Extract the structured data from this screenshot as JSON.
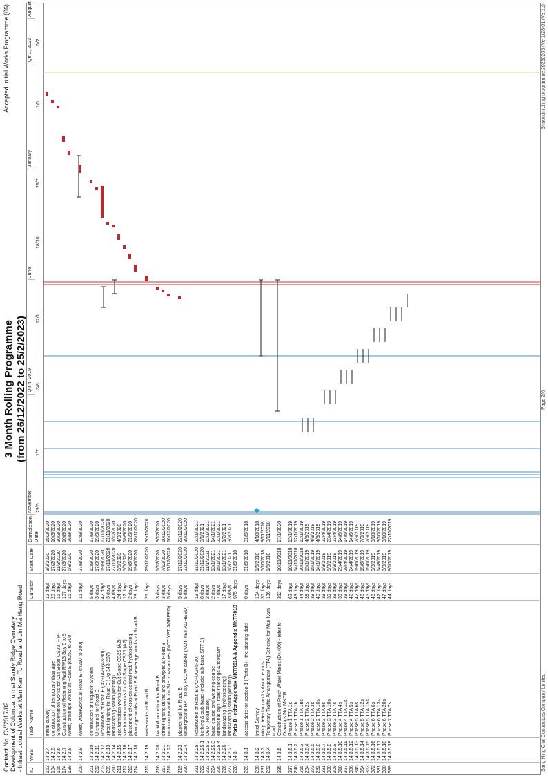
{
  "header": {
    "contract_line": "Contract No. CV/2017/02",
    "development_line": "Development of Columbarium at Sandy Ridge Cemetery",
    "works_line": "- Infrastructural Works at Man Kam To Road and Lin Ma Hang Road",
    "title_line1": "3 Month Rolling Programme",
    "title_line2": "(from 26/12/2022 to 25/2/2023)",
    "top_right": "Accepted Initial Works Programme (06)"
  },
  "columns": {
    "id": "ID",
    "wbs": "WBS",
    "task_name": "Task Name",
    "duration": "Duration",
    "start": "Start Date",
    "completion": "Completion Date"
  },
  "timescale": {
    "top": [
      "November",
      "Qtr 4, 2019",
      "June",
      "January",
      "Qtr 1, 2023",
      "August"
    ],
    "bottom": [
      "29/5",
      "1/7",
      "3/8",
      "12/1",
      "18/10",
      "25/7",
      "1/5",
      "5/2"
    ]
  },
  "rows": [
    {
      "id": "163",
      "wbs": "14.2.4",
      "name": "initial survey",
      "dur": "12 days",
      "start": "3/2/2020",
      "end": "15/2/2020"
    },
    {
      "id": "164",
      "wbs": "14.2.5",
      "name": "construction of temporary drainage",
      "dur": "20 days",
      "start": "17/2/2020",
      "end": "10/3/2020"
    },
    {
      "id": "165",
      "wbs": "14.2.6",
      "name": "Slope formation works for Cut Slope CS22 (+ P-",
      "dur": "15 days",
      "start": "11/3/2020",
      "end": "30/3/2020"
    },
    {
      "id": "174",
      "wbs": "14.2.7",
      "name": "Construction of Retaining Wall RW13 Bay 6 to 9",
      "dur": "107 days",
      "start": "27/3/2020",
      "end": "10/8/2020"
    },
    {
      "id": "199",
      "wbs": "14.2.8",
      "name": "(west) drainage works at Road E (ch250 to 300)",
      "dur": "16 days",
      "start": "6/8/2020",
      "end": "26/8/2020"
    },
    {
      "id": "200",
      "wbs": "14.2.9",
      "name": "(west) waterworks at Road E (ch250 to 300)",
      "dur": "15 days",
      "start": "27/8/2020",
      "end": "12/9/2020"
    },
    {
      "id": "201",
      "wbs": "14.2.10",
      "name": "construction of Irrigation System",
      "dur": "5 days",
      "start": "12/9/2020",
      "end": "17/9/2020"
    },
    {
      "id": "202",
      "wbs": "14.2.11",
      "name": "U-channel for Road E",
      "dur": "3 days",
      "start": "17/9/2020",
      "end": "19/9/2020"
    },
    {
      "id": "203",
      "wbs": "14.2.12",
      "name": "Roadworks of Road E (A2+(A2+(A3-90))",
      "dur": "42 days",
      "start": "19/9/2020",
      "end": "17/11/2020"
    },
    {
      "id": "209",
      "wbs": "14.2.13",
      "name": "street lighting for Road E (Ltg 143-207)",
      "dur": "3 days",
      "start": "17/11/2020",
      "end": "21/11/2020"
    },
    {
      "id": "210",
      "wbs": "14.2.14",
      "name": "landscaping (shrub planting)",
      "dur": "4 days",
      "start": "27/11/2020",
      "end": "1/12/2020"
    },
    {
      "id": "211",
      "wbs": "14.2.15",
      "name": "site formation works for Cut Slope CS25 (A2)",
      "dur": "24 days",
      "start": "8/6/2020",
      "end": "4/9/2020"
    },
    {
      "id": "212",
      "wbs": "14.2.16",
      "name": "site formation works for Cut Slope CS26 (A2)",
      "dur": "12 days",
      "start": "5/6/2020",
      "end": "18/9/2020"
    },
    {
      "id": "213",
      "wbs": "14.2.17",
      "name": "placement of erosion control mat/ hydroseeding",
      "dur": "2 days",
      "start": "19/6/2020",
      "end": "21/9/2020"
    },
    {
      "id": "214",
      "wbs": "14.2.18",
      "name": "drainage works at Road B & sewerage works at Road B",
      "dur": "28 days",
      "start": "19/6/2020",
      "end": "28/10/2020"
    },
    {
      "id": "215",
      "wbs": "14.2.19",
      "name": "waterworks at Road B",
      "dur": "25 days",
      "start": "29/10/2020",
      "end": "30/11/2020"
    },
    {
      "id": "216",
      "wbs": "14.2.20",
      "name": "backfill formation for Road B",
      "dur": "3 days",
      "start": "1/12/2020",
      "end": "3/12/2020"
    },
    {
      "id": "217",
      "wbs": "14.2.21",
      "name": "street lighting ducts and drawpits at Road B",
      "dur": "3 days",
      "start": "7/12/2020",
      "end": "10/12/2020"
    },
    {
      "id": "218",
      "wbs": "14.2.22",
      "name": "unimuon (inland from Site to vacancies (NOT YET AGREED)",
      "dur": "5 days",
      "start": "11/12/2020",
      "end": "16/12/2020"
    },
    {
      "id": "219",
      "wbs": "14.2.23",
      "name": "planter wall for Road B",
      "dur": "5 days",
      "start": "17/12/2020",
      "end": "22/12/2020"
    },
    {
      "id": "220",
      "wbs": "14.2.24",
      "name": "underground HKT to lay PCCW cables (NOT YET AGREED)",
      "dur": "5 days",
      "start": "23/12/2020",
      "end": "30/12/2020"
    },
    {
      "id": "221",
      "wbs": "14.2.25",
      "name": "Roadworks of Road B (A2+(A2+5-30)",
      "dur": "19 days",
      "start": "31/12/2020",
      "end": "22/1/2021"
    },
    {
      "id": "222",
      "wbs": "14.2.25.1",
      "name": "kerbing & sub-base (include sub-base SRT 1)",
      "dur": "8 days",
      "start": "31/12/2020",
      "end": "9/1/2021"
    },
    {
      "id": "223",
      "wbs": "14.2.25.2",
      "name": "DBM (Roadbase)",
      "dur": "2 days",
      "start": "11/1/2021",
      "end": "12/1/2021"
    },
    {
      "id": "224",
      "wbs": "14.2.25.3",
      "name": "base course and wearing course",
      "dur": "2 days",
      "start": "13/1/2021",
      "end": "14/1/2021"
    },
    {
      "id": "225",
      "wbs": "14.2.25.4",
      "name": "directional sign, road markings & footpath",
      "dur": "7 days",
      "start": "15/1/2021",
      "end": "22/1/2021"
    },
    {
      "id": "226",
      "wbs": "14.2.26",
      "name": "landscaping (hydroseeding)",
      "dur": "17 days",
      "start": "13/1/2021",
      "end": "1/2/2021"
    },
    {
      "id": "227",
      "wbs": "14.2.27",
      "name": "landscaping (shrub planting)",
      "dur": "3 days",
      "start": "1/2/2021",
      "end": "3/2/2021"
    },
    {
      "id": "228",
      "wbs": "14.3",
      "name": "Parts B - refer Appendix MKTR01A & Appendix MKTR01B",
      "dur": "975 days",
      "start": "31/5/2018",
      "end": "",
      "bold": true
    },
    {
      "id": "229",
      "wbs": "14.3.1",
      "name": "access date for section 1 (Parts B) - the starting date",
      "dur": "0 days",
      "start": "31/5/2018",
      "end": "31/5/2018"
    },
    {
      "id": "230",
      "wbs": "14.3.2",
      "name": "Initial Survey",
      "dur": "104 days",
      "start": "1/6/2018",
      "end": "4/10/2018"
    },
    {
      "id": "231",
      "wbs": "14.3.3",
      "name": "utility detection and subsoil reports",
      "dur": "30 days",
      "start": "5/10/2018",
      "end": "9/11/2018"
    },
    {
      "id": "232",
      "wbs": "14.3.4",
      "name": "Temporary Traffic Arrangement (TTA) Scheme for Man Kam road",
      "dur": "136 days",
      "start": "1/6/2018",
      "end": "9/11/2018"
    },
    {
      "id": "235",
      "wbs": "14.3.5",
      "name": "Construction of Fresh Water Mains (DN400) - refer to Drawings No. MKTR",
      "dur": "352 days",
      "start": "10/11/2018",
      "end": "17/1/2020"
    },
    {
      "id": "237",
      "wbs": "14.3.5.1",
      "name": "Phase 1 TTA 1s",
      "dur": "62 days",
      "start": "10/11/2018",
      "end": "12/1/2019"
    },
    {
      "id": "246",
      "wbs": "14.3.5.2",
      "name": "Phase 1 TTA 1b",
      "dur": "49 days",
      "start": "14/11/2018",
      "end": "12/1/2019"
    },
    {
      "id": "255",
      "wbs": "14.3.5.3",
      "name": "Phase 1 TTA 1bs",
      "dur": "44 days",
      "start": "20/11/2018",
      "end": "12/1/2019"
    },
    {
      "id": "264",
      "wbs": "14.3.5.4",
      "name": "Phase 2 TTA 2s",
      "dur": "39 days",
      "start": "15/1/2019",
      "end": "4/3/2019"
    },
    {
      "id": "273",
      "wbs": "14.3.5.5",
      "name": "Phase 2 TTA 3s",
      "dur": "39 days",
      "start": "15/1/2019",
      "end": "4/3/2019"
    },
    {
      "id": "282",
      "wbs": "14.3.5.6",
      "name": "Phase 2 TTA 10s",
      "dur": "40 days",
      "start": "14/1/2019",
      "end": "4/3/2019"
    },
    {
      "id": "291",
      "wbs": "14.3.5.7",
      "name": "Phase 3 TTA 9s",
      "dur": "39 days",
      "start": "5/3/2019",
      "end": "23/4/2019"
    },
    {
      "id": "300",
      "wbs": "14.3.5.8",
      "name": "Phase 3 TTA 10s",
      "dur": "39 days",
      "start": "5/3/2019",
      "end": "23/4/2019"
    },
    {
      "id": "309",
      "wbs": "14.3.5.9",
      "name": "Phase 3 TTA 7s",
      "dur": "39 days",
      "start": "5/3/2019",
      "end": "23/4/2019"
    },
    {
      "id": "318",
      "wbs": "14.3.5.10",
      "name": "Phase 4 TTA 4s",
      "dur": "38 days",
      "start": "29/4/2019",
      "end": "14/6/2019"
    },
    {
      "id": "327",
      "wbs": "14.3.5.11",
      "name": "Phase 4 TTA 11s",
      "dur": "38 days",
      "start": "29/4/2019",
      "end": "14/6/2019"
    },
    {
      "id": "336",
      "wbs": "14.3.5.12",
      "name": "Phase 4 TTA 5s",
      "dur": "42 days",
      "start": "24/4/2019",
      "end": "14/6/2019"
    },
    {
      "id": "345",
      "wbs": "14.3.5.13",
      "name": "Phase 5 TTA 6s",
      "dur": "42 days",
      "start": "19/6/2019",
      "end": "7/9/2019"
    },
    {
      "id": "354",
      "wbs": "14.3.5.14",
      "name": "Phase 5 TTA 12s",
      "dur": "45 days",
      "start": "15/6/2019",
      "end": "7/9/2019"
    },
    {
      "id": "363",
      "wbs": "14.3.5.15",
      "name": "Phase 5 TTA 15s",
      "dur": "45 days",
      "start": "15/6/2019",
      "end": "7/9/2019"
    },
    {
      "id": "372",
      "wbs": "14.3.5.16",
      "name": "Phase 6 TTA 6s",
      "dur": "45 days",
      "start": "9/8/2019",
      "end": "3/10/2019"
    },
    {
      "id": "381",
      "wbs": "14.3.5.17",
      "name": "Phase 6 TTA 13s",
      "dur": "42 days",
      "start": "14/8/2019",
      "end": "3/10/2019"
    },
    {
      "id": "390",
      "wbs": "14.3.5.18",
      "name": "Phase 6 TTA 20s",
      "dur": "47 days",
      "start": "8/8/2019",
      "end": "3/10/2019"
    },
    {
      "id": "399",
      "wbs": "14.3.5.19",
      "name": "Phase 7 TTA 7s",
      "dur": "44 days",
      "start": "8/10/2019",
      "end": "27/11/2019"
    }
  ],
  "footer": {
    "company": "Sang Hing Civil Contractors Company Limited",
    "page": "Page 2/6",
    "file": "3-month rolling programme 20230205 (Ver1)28-01 (Ver1b)"
  },
  "colors": {
    "task_bar": "#c0262b",
    "summary_bar": "#444444",
    "milestone": "#2a9fd6",
    "line_blue": "#4a90c8",
    "line_red": "#d03030",
    "line_yellow": "#e6d880"
  }
}
